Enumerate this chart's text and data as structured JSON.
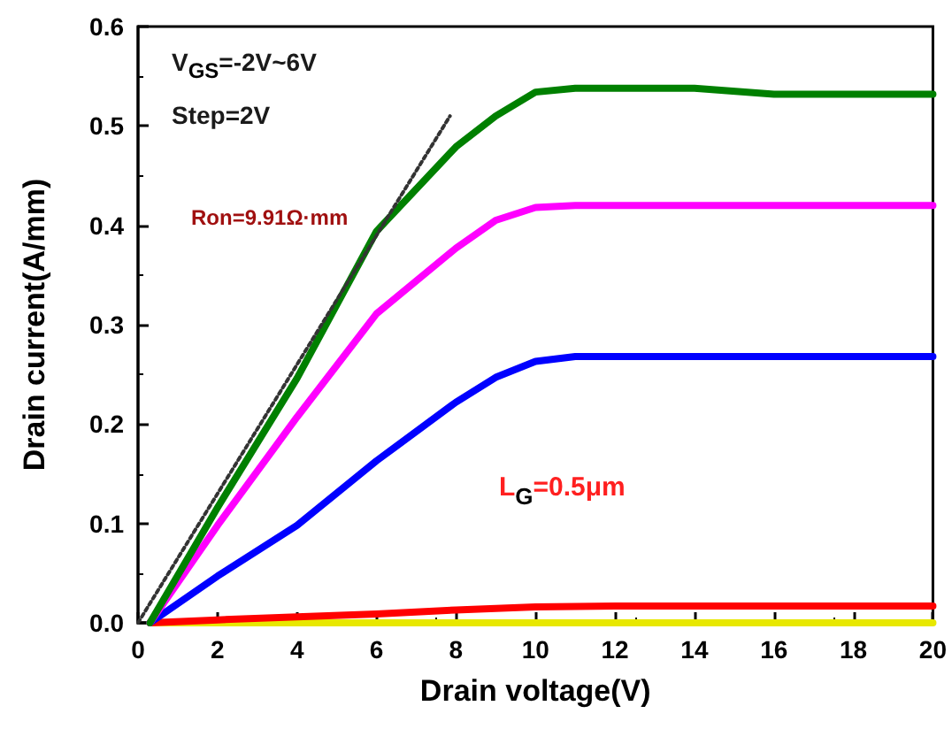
{
  "chart_data": {
    "type": "line",
    "xlabel": "Drain voltage(V)",
    "ylabel": "Drain current(A/mm)",
    "xlim": [
      0,
      20
    ],
    "xticks": [
      0,
      2,
      4,
      6,
      8,
      10,
      12,
      14,
      16,
      18,
      20
    ],
    "ylim": [
      0,
      0.6
    ],
    "yticks": [
      {
        "value": 0,
        "label": "0.0"
      },
      0.1,
      0.2,
      0.3,
      0.4,
      0.5,
      0.6
    ],
    "grid": false,
    "marker": "none",
    "line_style": "solid",
    "annotations": [
      "V$_{GS}$=-2V~6V",
      "Step=2V",
      "Ron=9.91Ω·mm",
      "L$_{G}$=0.5μm"
    ],
    "series": [
      {
        "color": "#e8e800",
        "x": [
          0.3,
          5,
          10,
          15,
          20
        ],
        "values": [
          0,
          0,
          0,
          0,
          0
        ]
      },
      {
        "color": "#ff0000",
        "x": [
          0.3,
          2,
          4,
          6,
          8,
          10,
          12,
          16,
          20
        ],
        "values": [
          0,
          0.003,
          0.006,
          0.009,
          0.013,
          0.016,
          0.017,
          0.017,
          0.017
        ]
      },
      {
        "color": "#0000ff",
        "x": [
          0.3,
          2,
          4,
          6,
          8,
          9,
          10,
          11,
          14,
          20
        ],
        "values": [
          0,
          0.047,
          0.098,
          0.163,
          0.222,
          0.247,
          0.263,
          0.268,
          0.268,
          0.268
        ]
      },
      {
        "color": "#ff00ff",
        "x": [
          0.3,
          2,
          4,
          6,
          8,
          9,
          10,
          11,
          14,
          20
        ],
        "values": [
          0,
          0.098,
          0.207,
          0.311,
          0.377,
          0.405,
          0.418,
          0.42,
          0.42,
          0.42
        ]
      },
      {
        "color": "#008000",
        "x": [
          0.3,
          2,
          4,
          6,
          8,
          9,
          10,
          11,
          14,
          16,
          20
        ],
        "values": [
          0,
          0.116,
          0.246,
          0.394,
          0.479,
          0.51,
          0.534,
          0.538,
          0.538,
          0.532,
          0.532
        ]
      },
      {
        "color": "#333333",
        "line_style": "dotted",
        "x": [
          0,
          7.85
        ],
        "values": [
          0,
          0.51
        ]
      }
    ]
  }
}
